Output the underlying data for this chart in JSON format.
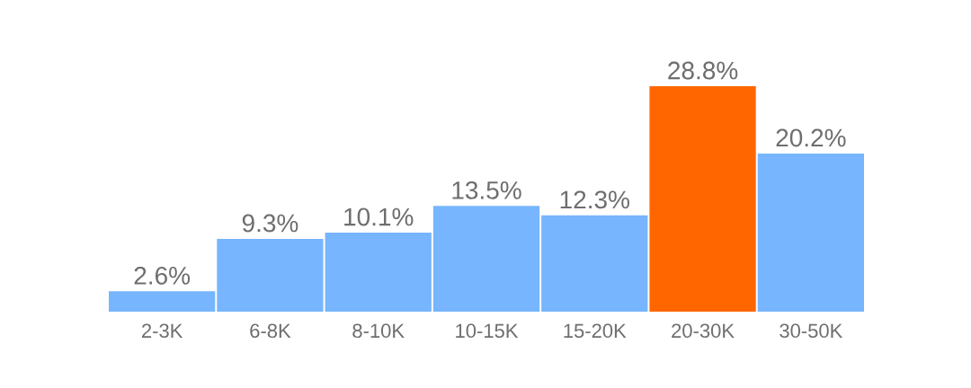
{
  "chart_data": {
    "type": "bar",
    "categories": [
      "2-3K",
      "6-8K",
      "8-10K",
      "10-15K",
      "15-20K",
      "20-30K",
      "30-50K"
    ],
    "values": [
      2.6,
      9.3,
      10.1,
      13.5,
      12.3,
      28.8,
      20.2
    ],
    "value_labels": [
      "2.6%",
      "9.3%",
      "10.1%",
      "13.5%",
      "12.3%",
      "28.8%",
      "20.2%"
    ],
    "colors": [
      "#77b5fe",
      "#77b5fe",
      "#77b5fe",
      "#77b5fe",
      "#77b5fe",
      "#ff6600",
      "#77b5fe"
    ]
  }
}
